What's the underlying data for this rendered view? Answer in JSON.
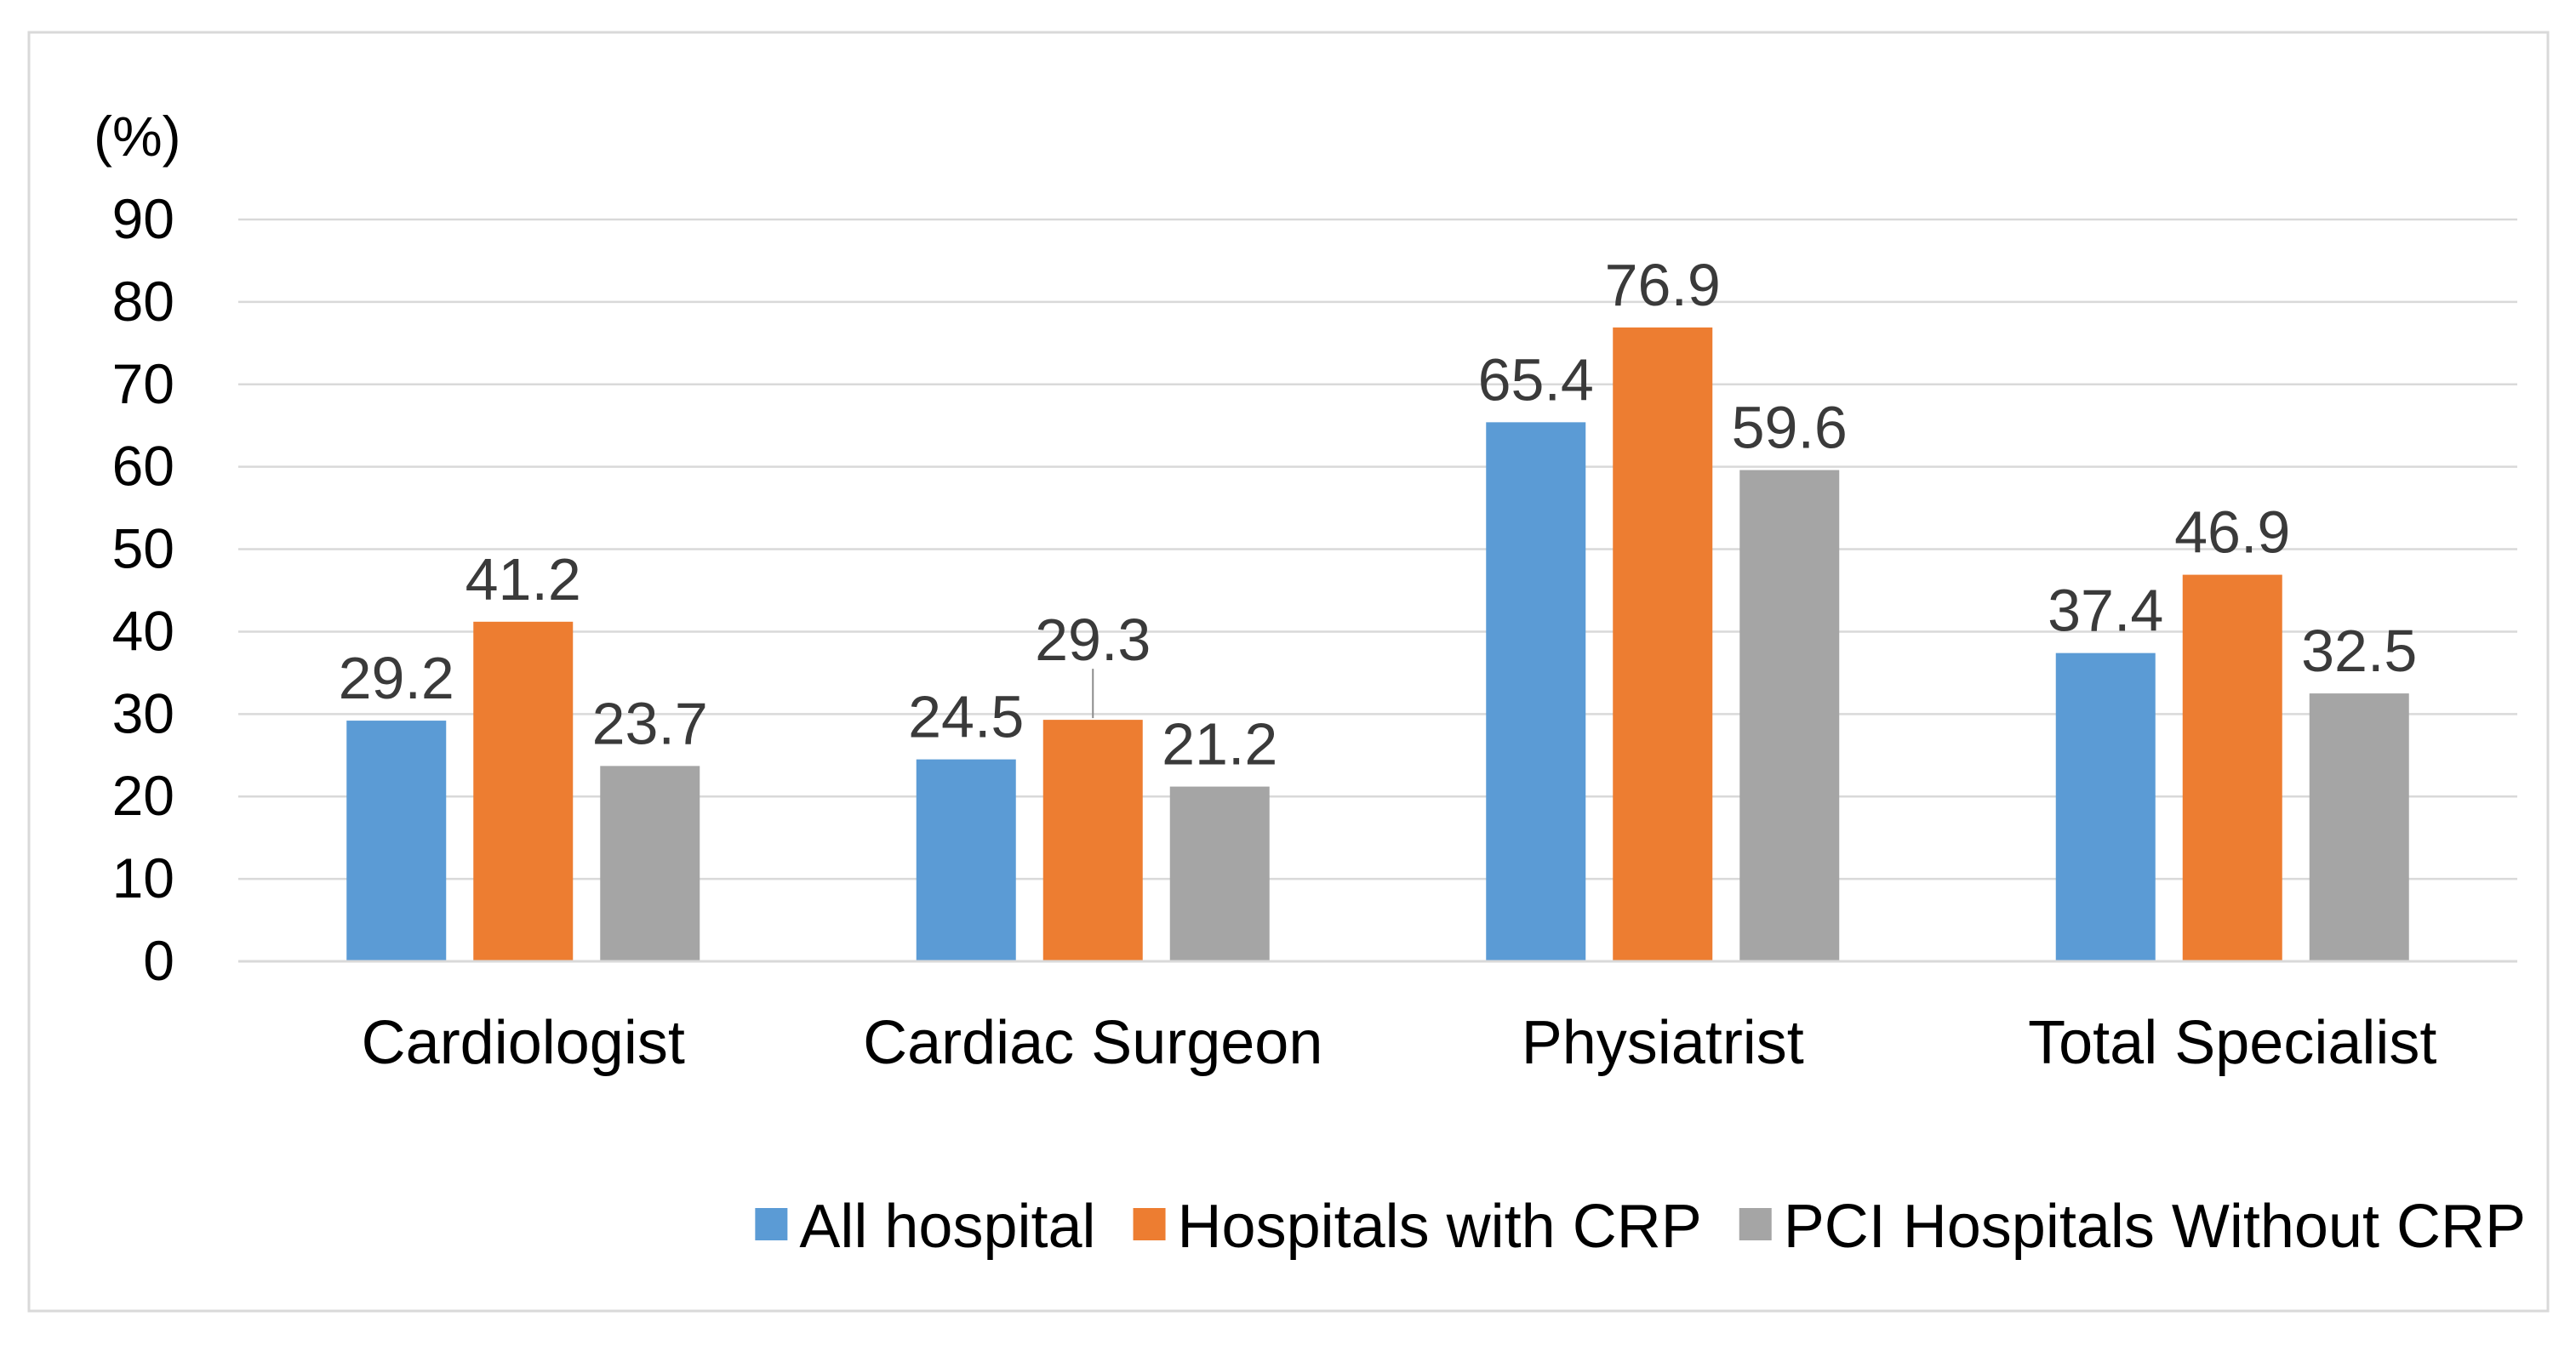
{
  "chart_data": {
    "type": "bar",
    "title": "",
    "xlabel": "",
    "ylabel": "(%)",
    "ylim": [
      0,
      90
    ],
    "yticks": [
      0,
      10,
      20,
      30,
      40,
      50,
      60,
      70,
      80,
      90
    ],
    "grid": true,
    "categories": [
      "Cardiologist",
      "Cardiac Surgeon",
      "Physiatrist",
      "Total Specialist"
    ],
    "series": [
      {
        "name": "All hospital",
        "color": "#5b9bd5",
        "values": [
          29.2,
          24.5,
          65.4,
          37.4
        ],
        "labels": [
          "29.2",
          "24.5",
          "65.4",
          "37.4"
        ]
      },
      {
        "name": "Hospitals with CRP",
        "color": "#ed7d31",
        "values": [
          41.2,
          29.3,
          76.9,
          46.9
        ],
        "labels": [
          "41.2",
          "29.3",
          "76.9",
          "46.9"
        ]
      },
      {
        "name": "PCI Hospitals Without CRP",
        "color": "#a5a5a5",
        "values": [
          23.7,
          21.2,
          59.6,
          32.5
        ],
        "labels": [
          "23.7",
          "21.2",
          "59.6",
          "32.5"
        ]
      }
    ],
    "legend_position": "bottom-right"
  }
}
